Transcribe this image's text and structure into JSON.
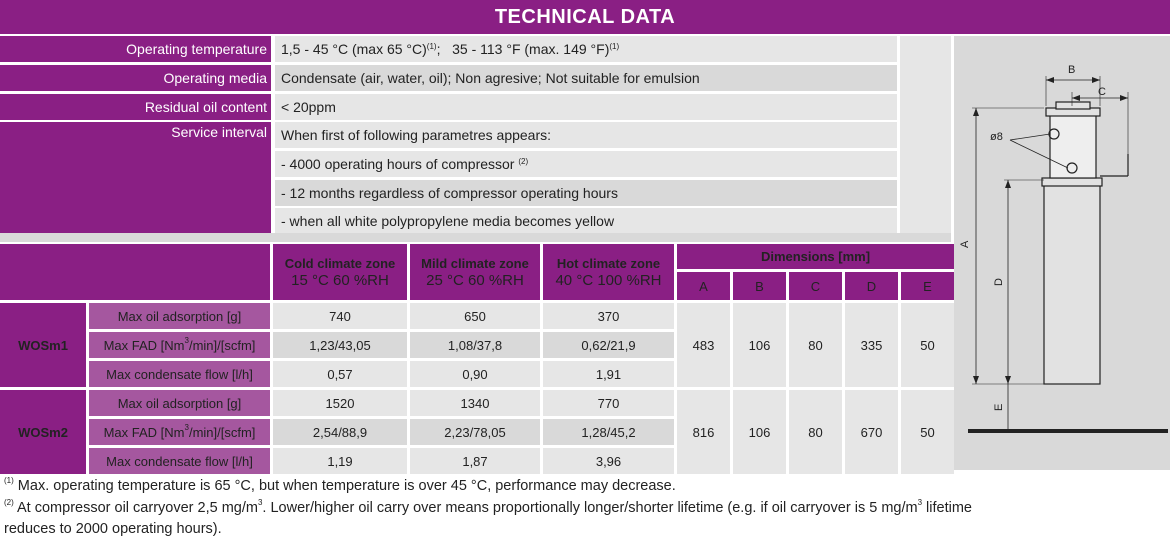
{
  "banner_title": "TECHNICAL DATA",
  "specs": [
    {
      "label": "Operating temperature",
      "value_a": "1,5 - 45 °C (max 65 °C)",
      "sup_a": "(1)",
      "value_b": ";   35 - 113 °F (max. 149 °F)",
      "sup_b": "(1)"
    },
    {
      "label": "Operating media",
      "value": "Condensate (air, water, oil); Non agresive; Not suitable for emulsion"
    },
    {
      "label": "Residual oil content",
      "value": "< 20ppm"
    },
    {
      "label": "Service interval",
      "lines": [
        {
          "text": "When first of following parametres appears:",
          "sup": ""
        },
        {
          "text": "- 4000 operating hours of compressor ",
          "sup": "(2)"
        },
        {
          "text": "- 12 months regardless of compressor operating hours",
          "sup": ""
        },
        {
          "text": "- when all white polypropylene media becomes yellow",
          "sup": ""
        }
      ]
    }
  ],
  "table": {
    "zones": [
      {
        "title": "Cold climate zone",
        "sub": "15 °C 60 %RH"
      },
      {
        "title": "Mild climate zone",
        "sub": "25 °C 60 %RH"
      },
      {
        "title": "Hot climate zone",
        "sub": "40 °C 100 %RH"
      }
    ],
    "dimensions_header": "Dimensions [mm]",
    "dim_labels": [
      "A",
      "B",
      "C",
      "D",
      "E"
    ],
    "param_labels": {
      "oil": "Max oil adsorption [g]",
      "fad_a": "Max FAD [Nm",
      "fad_sup": "3",
      "fad_b": "/min]/[scfm]",
      "flow": "Max condensate flow [l/h]"
    },
    "models": [
      {
        "name": "WOSm1",
        "rows": [
          [
            "740",
            "650",
            "370"
          ],
          [
            "1,23/43,05",
            "1,08/37,8",
            "0,62/21,9"
          ],
          [
            "0,57",
            "0,90",
            "1,91"
          ]
        ],
        "dims": [
          "483",
          "106",
          "80",
          "335",
          "50"
        ]
      },
      {
        "name": "WOSm2",
        "rows": [
          [
            "1520",
            "1340",
            "770"
          ],
          [
            "2,54/88,9",
            "2,23/78,05",
            "1,28/45,2"
          ],
          [
            "1,19",
            "1,87",
            "3,96"
          ]
        ],
        "dims": [
          "816",
          "106",
          "80",
          "670",
          "50"
        ]
      }
    ]
  },
  "footnotes": [
    {
      "mark": "(1)",
      "text": " Max. operating temperature is 65 °C, but when temperature is over 45 °C, performance may decrease."
    },
    {
      "mark": "(2)",
      "text_a": " At compressor oil carryover 2,5 mg/m",
      "sup": "3",
      "text_b": ". Lower/higher oil carry over means proportionally longer/shorter lifetime (e.g. if oil carryover is 5 mg/m",
      "sup2": "3",
      "text_c": " lifetime",
      "line2": "reduces to 2000 operating hours)."
    }
  ],
  "drawing": {
    "labels": {
      "b": "B",
      "c": "C",
      "a": "A",
      "d": "D",
      "e": "E",
      "hole": "ø8"
    }
  }
}
